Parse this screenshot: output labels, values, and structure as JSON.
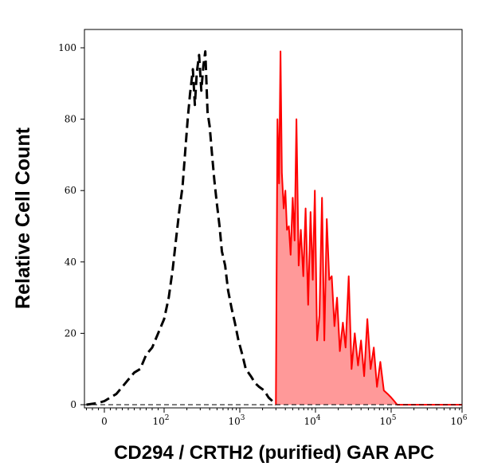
{
  "chart_data": {
    "type": "area",
    "title": "",
    "xlabel": "CD294 / CRTH2 (purified) GAR APC",
    "ylabel": "Relative Cell Count",
    "x_scale": "biexponential",
    "ylim": [
      0,
      100
    ],
    "x_ticks": [
      {
        "value": 0,
        "base": "0",
        "exp": ""
      },
      {
        "value": 100,
        "base": "10",
        "exp": "2"
      },
      {
        "value": 1000,
        "base": "10",
        "exp": "3"
      },
      {
        "value": 10000,
        "base": "10",
        "exp": "4"
      },
      {
        "value": 100000,
        "base": "10",
        "exp": "5"
      },
      {
        "value": 1000000,
        "base": "10",
        "exp": "6"
      }
    ],
    "y_ticks": [
      0,
      20,
      40,
      60,
      80,
      100
    ],
    "grid": false,
    "series": [
      {
        "style": "dashed",
        "color": "#000000",
        "fill": "none",
        "x": [
          -30,
          -10,
          0,
          10,
          20,
          30,
          40,
          50,
          60,
          70,
          80,
          90,
          100,
          115,
          130,
          145,
          160,
          175,
          190,
          205,
          220,
          240,
          255,
          270,
          290,
          310,
          330,
          350,
          375,
          400,
          430,
          460,
          500,
          540,
          580,
          640,
          700,
          780,
          860,
          960,
          1080,
          1200,
          1400,
          1600,
          1800,
          2100,
          2400,
          2700,
          3000
        ],
        "y": [
          0,
          0.5,
          1,
          2,
          3,
          5,
          7,
          9,
          10,
          14,
          16,
          20,
          24,
          30,
          38,
          47,
          55,
          61,
          71,
          80,
          87,
          94,
          84,
          93,
          98,
          88,
          95,
          99,
          82,
          78,
          70,
          63,
          56,
          50,
          43,
          39,
          32,
          27,
          23,
          18,
          14,
          10,
          8,
          6,
          5,
          4,
          2,
          1,
          0
        ]
      },
      {
        "style": "solid",
        "color": "#ff0000",
        "fill": "#ff9999",
        "x": [
          3000,
          3150,
          3300,
          3450,
          3600,
          3800,
          4000,
          4200,
          4450,
          4700,
          5000,
          5300,
          5600,
          6000,
          6400,
          6900,
          7400,
          8000,
          8600,
          9200,
          9800,
          10500,
          11300,
          12200,
          13100,
          14100,
          15200,
          16400,
          17800,
          19300,
          21000,
          23000,
          25000,
          27500,
          30000,
          33000,
          36500,
          40000,
          44000,
          48500,
          53500,
          59000,
          65000,
          72000,
          80000,
          90000,
          100000,
          110000,
          120000,
          140000,
          160000,
          200000,
          300000,
          400000,
          500000,
          600000,
          1000000
        ],
        "y": [
          0,
          80,
          62,
          99,
          65,
          55,
          60,
          49,
          50,
          42,
          58,
          46,
          80,
          39,
          49,
          36,
          55,
          28,
          54,
          35,
          60,
          18,
          25,
          58,
          18,
          52,
          35,
          36,
          22,
          30,
          15,
          23,
          16,
          36,
          10,
          20,
          11,
          18,
          8,
          24,
          10,
          16,
          5,
          12,
          4,
          3,
          2,
          1,
          0,
          0,
          0,
          0,
          0,
          0,
          0,
          0,
          0
        ]
      }
    ]
  }
}
